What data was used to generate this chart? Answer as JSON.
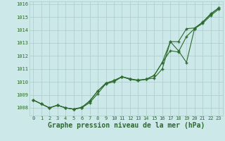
{
  "xlabel": "Graphe pression niveau de la mer (hPa)",
  "x_values": [
    0,
    1,
    2,
    3,
    4,
    5,
    6,
    7,
    8,
    9,
    10,
    11,
    12,
    13,
    14,
    15,
    16,
    17,
    18,
    19,
    20,
    21,
    22,
    23
  ],
  "line1": [
    1008.6,
    1008.3,
    1008.0,
    1008.2,
    1008.0,
    1007.9,
    1008.0,
    1008.4,
    1009.1,
    1009.85,
    1010.0,
    1010.4,
    1010.25,
    1010.1,
    1010.2,
    1010.3,
    1011.0,
    1013.1,
    1012.4,
    1011.5,
    1014.1,
    1014.5,
    1015.1,
    1015.6
  ],
  "line2": [
    1008.6,
    1008.3,
    1008.0,
    1008.2,
    1008.0,
    1007.9,
    1008.0,
    1008.55,
    1009.3,
    1009.9,
    1010.1,
    1010.4,
    1010.2,
    1010.1,
    1010.2,
    1010.5,
    1011.5,
    1012.4,
    1012.3,
    1013.5,
    1014.1,
    1014.6,
    1015.2,
    1015.7
  ],
  "line3": [
    1008.6,
    1008.3,
    1008.0,
    1008.2,
    1008.0,
    1007.9,
    1008.05,
    1008.5,
    1009.3,
    1009.9,
    1010.1,
    1010.4,
    1010.2,
    1010.15,
    1010.2,
    1010.5,
    1011.5,
    1013.1,
    1013.1,
    1014.1,
    1014.15,
    1014.6,
    1015.25,
    1015.7
  ],
  "line_color": "#2d6a2d",
  "bg_color": "#cce8e8",
  "grid_color": "#aacccc",
  "label_color": "#2d6a2d",
  "ylim": [
    1007.4,
    1016.2
  ],
  "yticks": [
    1008,
    1009,
    1010,
    1011,
    1012,
    1013,
    1014,
    1015,
    1016
  ],
  "xticks": [
    0,
    1,
    2,
    3,
    4,
    5,
    6,
    7,
    8,
    9,
    10,
    11,
    12,
    13,
    14,
    15,
    16,
    17,
    18,
    19,
    20,
    21,
    22,
    23
  ],
  "tick_label_fontsize": 5.0,
  "xlabel_fontsize": 7.0
}
